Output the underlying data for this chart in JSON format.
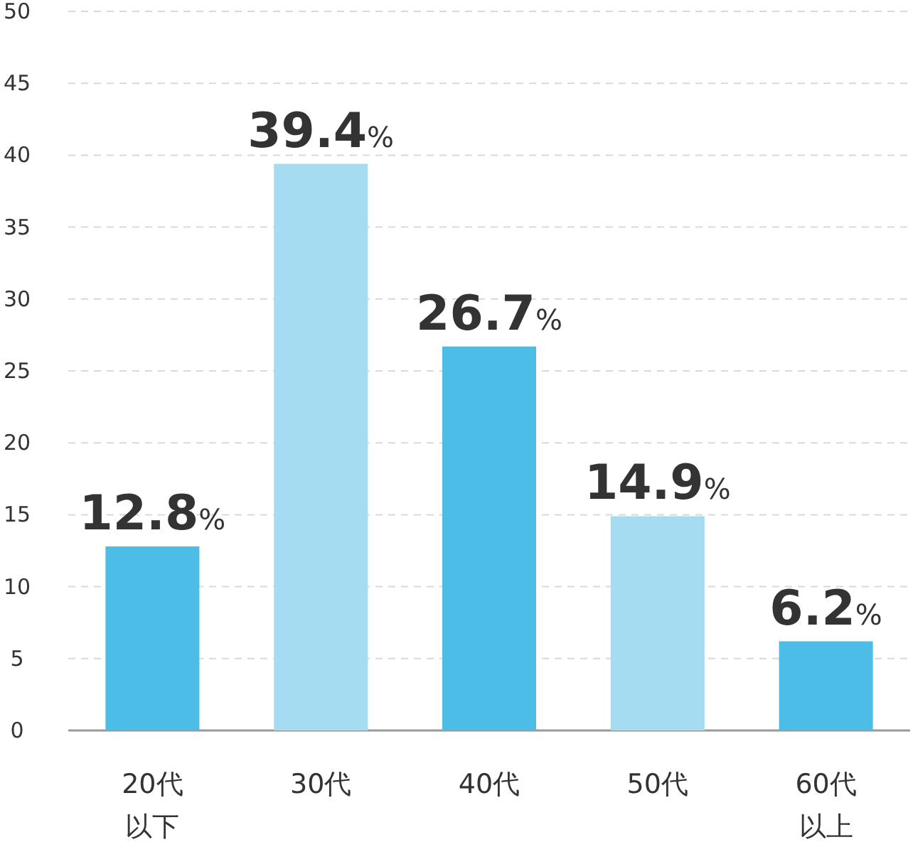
{
  "chart_data": {
    "type": "bar",
    "categories": [
      "20代以下",
      "30代",
      "40代",
      "50代",
      "60代以上"
    ],
    "values": [
      12.8,
      39.4,
      26.7,
      14.9,
      6.2
    ],
    "colors": [
      "#4bbde6",
      "#a6dcf2",
      "#4bbde6",
      "#a6dcf2",
      "#4bbde6"
    ],
    "value_labels": [
      "12.8%",
      "39.4%",
      "26.7%",
      "14.9%",
      "6.2%"
    ],
    "ylim": [
      0,
      50
    ],
    "yticks": [
      0,
      5,
      10,
      15,
      20,
      25,
      30,
      35,
      40,
      45,
      50
    ],
    "grid": "y"
  }
}
